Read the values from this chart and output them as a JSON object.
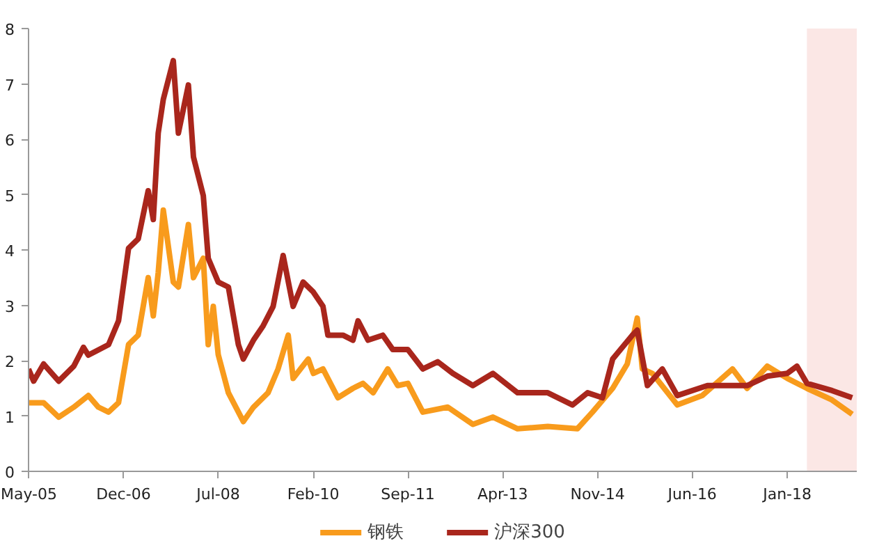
{
  "chart_data": {
    "type": "line",
    "legend": "bottom",
    "grid": false,
    "line_style": "solid",
    "marker": "none",
    "xlim": [
      "2005-05",
      "2019-03"
    ],
    "xticks": [
      {
        "value": "2005-05",
        "label": "May-05"
      },
      {
        "value": "2006-12",
        "label": "Dec-06"
      },
      {
        "value": "2008-07",
        "label": "Jul-08"
      },
      {
        "value": "2010-02",
        "label": "Feb-10"
      },
      {
        "value": "2011-09",
        "label": "Sep-11"
      },
      {
        "value": "2013-04",
        "label": "Apr-13"
      },
      {
        "value": "2014-11",
        "label": "Nov-14"
      },
      {
        "value": "2016-06",
        "label": "Jun-16"
      },
      {
        "value": "2018-01",
        "label": "Jan-18"
      }
    ],
    "ylim": [
      0,
      8
    ],
    "yticks": [
      0,
      1,
      2,
      3,
      4,
      5,
      6,
      7,
      8
    ],
    "bands": [
      {
        "axis": "x",
        "from": "2018-05",
        "to": "2019-03",
        "color": "#fbe4e2"
      }
    ],
    "series": [
      {
        "name": "钢铁",
        "color": "#f89b1c",
        "x": [
          "2005-05",
          "2005-08",
          "2005-11",
          "2006-02",
          "2006-05",
          "2006-07",
          "2006-09",
          "2006-11",
          "2007-01",
          "2007-03",
          "2007-05",
          "2007-06",
          "2007-07",
          "2007-08",
          "2007-10",
          "2007-11",
          "2008-01",
          "2008-02",
          "2008-04",
          "2008-05",
          "2008-06",
          "2008-07",
          "2008-09",
          "2008-12",
          "2009-02",
          "2009-05",
          "2009-07",
          "2009-09",
          "2009-10",
          "2010-01",
          "2010-02",
          "2010-04",
          "2010-07",
          "2010-10",
          "2010-12",
          "2011-02",
          "2011-05",
          "2011-07",
          "2011-09",
          "2011-12",
          "2012-05",
          "2012-10",
          "2013-02",
          "2013-07",
          "2014-01",
          "2014-07",
          "2014-10",
          "2015-02",
          "2015-05",
          "2015-07",
          "2015-08",
          "2015-10",
          "2016-03",
          "2016-08",
          "2017-02",
          "2017-05",
          "2017-09",
          "2018-01",
          "2018-05",
          "2018-10",
          "2019-02"
        ],
        "values": [
          1.24,
          1.24,
          0.98,
          1.16,
          1.37,
          1.16,
          1.07,
          1.24,
          2.29,
          2.46,
          3.5,
          2.81,
          3.59,
          4.72,
          3.42,
          3.33,
          4.46,
          3.5,
          3.85,
          2.29,
          2.98,
          2.11,
          1.42,
          0.9,
          1.16,
          1.42,
          1.85,
          2.46,
          1.68,
          2.03,
          1.77,
          1.85,
          1.33,
          1.5,
          1.59,
          1.42,
          1.85,
          1.55,
          1.59,
          1.07,
          1.16,
          0.85,
          0.98,
          0.77,
          0.81,
          0.77,
          1.07,
          1.5,
          1.94,
          2.77,
          1.85,
          1.77,
          1.2,
          1.37,
          1.85,
          1.5,
          1.9,
          1.68,
          1.5,
          1.29,
          1.03
        ]
      },
      {
        "name": "沪深300",
        "color": "#a9261c",
        "x": [
          "2005-05",
          "2005-06",
          "2005-08",
          "2005-11",
          "2006-02",
          "2006-04",
          "2006-05",
          "2006-09",
          "2006-11",
          "2007-01",
          "2007-03",
          "2007-05",
          "2007-06",
          "2007-07",
          "2007-08",
          "2007-10",
          "2007-11",
          "2008-01",
          "2008-02",
          "2008-04",
          "2008-05",
          "2008-07",
          "2008-09",
          "2008-11",
          "2008-12",
          "2009-02",
          "2009-04",
          "2009-06",
          "2009-08",
          "2009-10",
          "2009-12",
          "2010-02",
          "2010-04",
          "2010-05",
          "2010-08",
          "2010-10",
          "2010-11",
          "2011-01",
          "2011-04",
          "2011-06",
          "2011-09",
          "2011-12",
          "2012-03",
          "2012-06",
          "2012-10",
          "2013-02",
          "2013-07",
          "2014-01",
          "2014-06",
          "2014-09",
          "2014-12",
          "2015-02",
          "2015-06",
          "2015-07",
          "2015-09",
          "2015-12",
          "2016-03",
          "2016-09",
          "2017-05",
          "2017-09",
          "2018-01",
          "2018-03",
          "2018-05",
          "2018-10",
          "2019-02"
        ],
        "values": [
          1.85,
          1.63,
          1.94,
          1.63,
          1.9,
          2.24,
          2.1,
          2.29,
          2.72,
          4.03,
          4.2,
          5.07,
          4.55,
          6.11,
          6.72,
          7.42,
          6.11,
          6.98,
          5.68,
          4.98,
          3.85,
          3.42,
          3.33,
          2.29,
          2.03,
          2.37,
          2.63,
          2.98,
          3.9,
          2.98,
          3.42,
          3.24,
          2.98,
          2.46,
          2.46,
          2.37,
          2.72,
          2.37,
          2.46,
          2.2,
          2.2,
          1.85,
          1.98,
          1.77,
          1.55,
          1.77,
          1.42,
          1.42,
          1.2,
          1.42,
          1.33,
          2.03,
          2.46,
          2.55,
          1.55,
          1.85,
          1.37,
          1.55,
          1.55,
          1.72,
          1.77,
          1.9,
          1.59,
          1.46,
          1.33
        ]
      }
    ]
  }
}
